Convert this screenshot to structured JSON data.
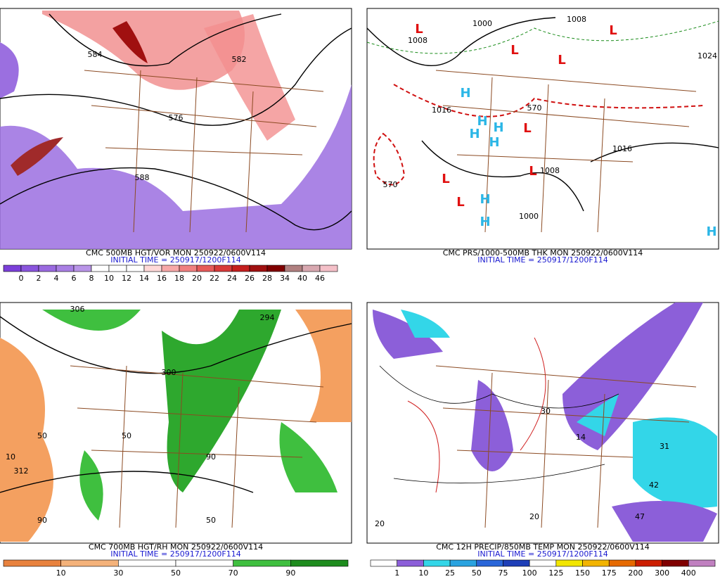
{
  "panels": [
    {
      "caption": "CMC 500MB HGT/VOR MON 250922/0600V114",
      "init": "INITIAL TIME = 250917/1200F114",
      "map_labels": [
        "584",
        "576",
        "588",
        "582"
      ],
      "colorbar": {
        "labels": [
          0,
          2,
          4,
          6,
          8,
          10,
          12,
          14,
          16,
          18,
          20,
          22,
          24,
          26,
          28,
          34,
          40,
          46
        ],
        "colors": [
          "#7b3fd9",
          "#8a55dd",
          "#9a6ae0",
          "#a97fe4",
          "#b995e8",
          "#ffffff",
          "#ffffff",
          "#ffffff",
          "#ffd9d9",
          "#f7a8a8",
          "#f08080",
          "#e65a5a",
          "#d83a3a",
          "#c41e1e",
          "#a01010",
          "#800000",
          "#b08080",
          "#d8a8b0",
          "#f4c0c8"
        ]
      }
    },
    {
      "caption": "CMC PRS/1000-500MB THK MON 250922/0600V114",
      "init": "INITIAL TIME = 250917/1200F114",
      "map_labels": [
        "1000",
        "1008",
        "1008",
        "1024",
        "1016",
        "1016",
        "1008",
        "1000",
        "570",
        "570"
      ],
      "markers": [
        "L",
        "L",
        "L",
        "L",
        "L",
        "L",
        "L",
        "L",
        "H",
        "H",
        "H",
        "H",
        "H",
        "H",
        "H",
        "H"
      ]
    },
    {
      "caption": "CMC 700MB HGT/RH MON 250922/0600V114",
      "init": "INITIAL TIME = 250917/1200F114",
      "map_labels": [
        "294",
        "306",
        "312",
        "300",
        "50",
        "50",
        "50",
        "90",
        "90",
        "10"
      ],
      "colorbar": {
        "labels": [
          10,
          30,
          50,
          70,
          90
        ],
        "colors": [
          "#e8823e",
          "#f4b27a",
          "#ffffff",
          "#ffffff",
          "#3fbf3f",
          "#1e8c1e"
        ]
      }
    },
    {
      "caption": "CMC 12H PRECIP/850MB TEMP MON 250922/0600V114",
      "init": "INITIAL TIME = 250917/1200F114",
      "map_labels": [
        "20",
        "30",
        "14",
        "31",
        "42",
        "47",
        "20"
      ],
      "colorbar": {
        "labels": [
          1,
          10,
          25,
          50,
          75,
          100,
          125,
          150,
          175,
          200,
          300,
          400
        ],
        "colors": [
          "#ffffff",
          "#8c5fd9",
          "#33d6e8",
          "#29a3e0",
          "#2966d9",
          "#1e3fb8",
          "#ffffff",
          "#f2e600",
          "#f2b400",
          "#e66a00",
          "#cc1e00",
          "#800000",
          "#c080c0"
        ]
      }
    }
  ]
}
